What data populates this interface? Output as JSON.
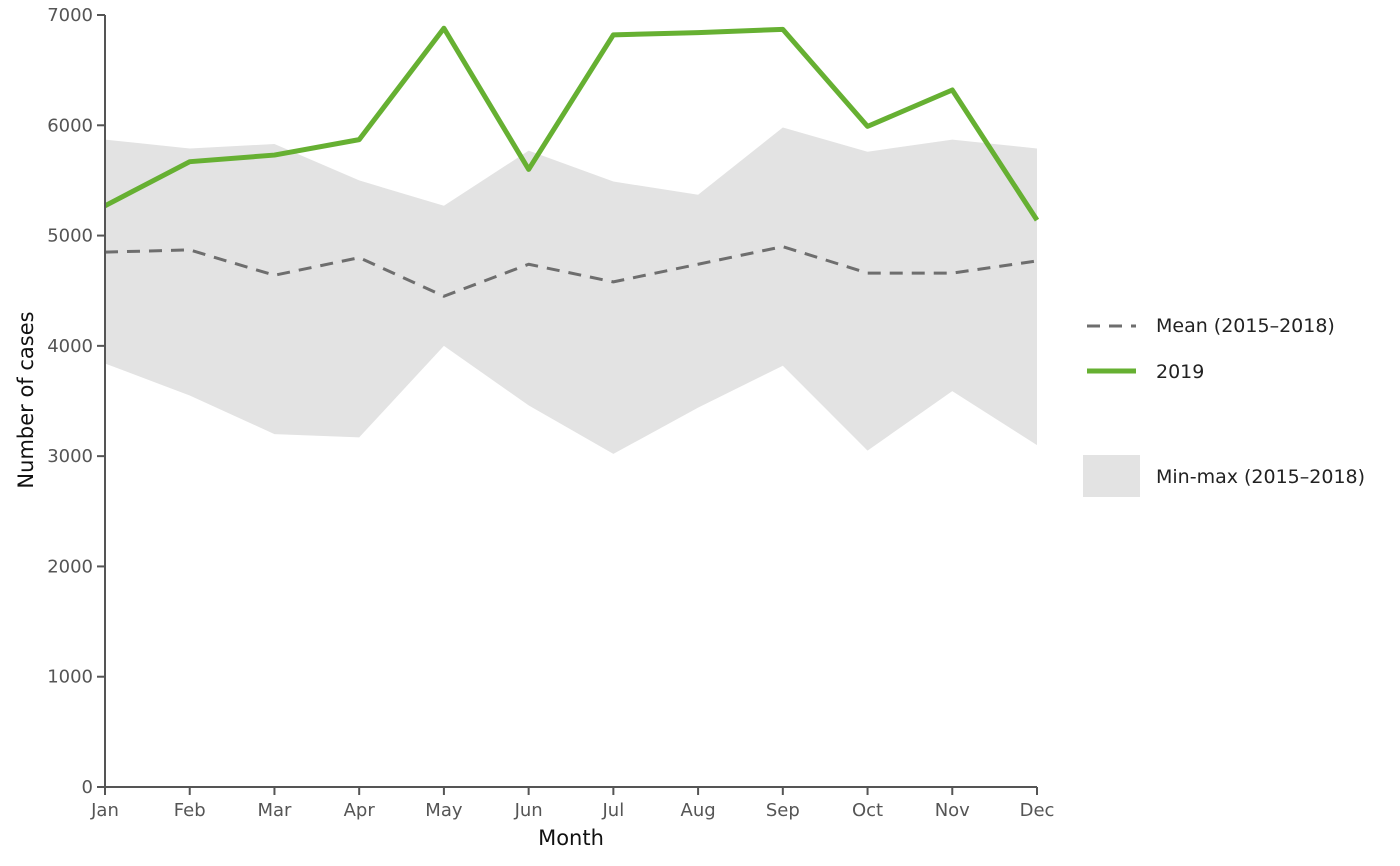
{
  "chart_data": {
    "type": "line",
    "xlabel": "Month",
    "ylabel": "Number of cases",
    "categories": [
      "Jan",
      "Feb",
      "Mar",
      "Apr",
      "May",
      "Jun",
      "Jul",
      "Aug",
      "Sep",
      "Oct",
      "Nov",
      "Dec"
    ],
    "ylim": [
      0,
      7000
    ],
    "yticks": [
      0,
      1000,
      2000,
      3000,
      4000,
      5000,
      6000,
      7000
    ],
    "grid": false,
    "legend_placement": "right",
    "series": [
      {
        "name": "Mean (2015–2018)",
        "style": "dashed",
        "color": "#6e6e6e",
        "values": [
          4850,
          4870,
          4640,
          4800,
          4450,
          4740,
          4580,
          4740,
          4900,
          4660,
          4660,
          4770
        ]
      },
      {
        "name": "2019",
        "style": "solid",
        "color": "#66b032",
        "values": [
          5270,
          5670,
          5730,
          5870,
          6880,
          5600,
          6820,
          6840,
          6870,
          5990,
          6320,
          5140
        ]
      }
    ],
    "band": {
      "name": "Min-max (2015–2018)",
      "color": "#e3e3e3",
      "min": [
        3840,
        3550,
        3200,
        3170,
        4000,
        3460,
        3020,
        3440,
        3820,
        3050,
        3590,
        3100
      ],
      "max": [
        5870,
        5790,
        5830,
        5500,
        5270,
        5770,
        5490,
        5370,
        5980,
        5760,
        5870,
        5790
      ]
    }
  }
}
